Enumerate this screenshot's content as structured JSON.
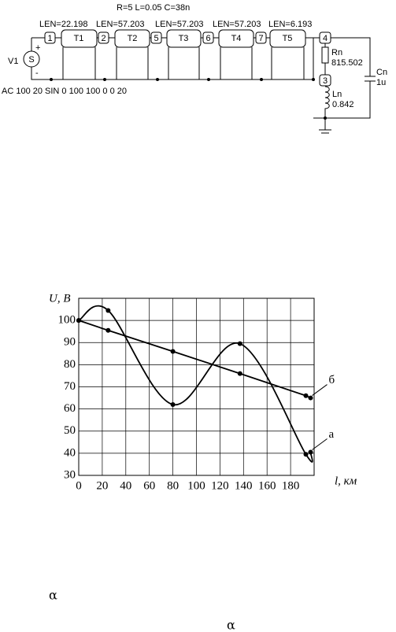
{
  "circuit": {
    "params": "R=5 L=0.05 C=38n",
    "lengths": [
      "LEN=22.198",
      "LEN=57.203",
      "LEN=57.203",
      "LEN=57.203",
      "LEN=6.193"
    ],
    "nodes": [
      "1",
      "2",
      "5",
      "6",
      "7",
      "4",
      "3"
    ],
    "lines": [
      "T1",
      "T2",
      "T3",
      "T4",
      "T5"
    ],
    "source": {
      "name": "V1",
      "symbol": "S",
      "plus": "+",
      "minus": "-",
      "spec": "AC 100 20 SIN 0 100 100 0 0 20"
    },
    "resistor": {
      "name": "Rn",
      "value": "815.502"
    },
    "inductor": {
      "name": "Ln",
      "value": "0.842"
    },
    "capacitor": {
      "name": "Cn",
      "value": "1u"
    }
  },
  "chart_data": {
    "type": "line",
    "x_label": "l, км",
    "y_label": "U, B",
    "x": [
      0,
      25,
      80,
      137,
      193,
      197
    ],
    "series": [
      {
        "name": "б",
        "color": "#000000",
        "values": [
          100,
          95.5,
          86,
          76,
          66,
          65
        ],
        "smooth": false
      },
      {
        "name": "а",
        "color": "#000000",
        "values": [
          100,
          104.5,
          62,
          89.5,
          39.5,
          40.5
        ],
        "smooth": true
      }
    ],
    "xlim": [
      0,
      200
    ],
    "xticks": [
      0,
      20,
      40,
      60,
      80,
      100,
      120,
      140,
      160,
      180
    ],
    "ylim": [
      30,
      110
    ],
    "yticks": [
      30,
      40,
      50,
      60,
      70,
      80,
      90,
      100
    ],
    "grid": true
  },
  "annotations": [
    "α",
    "α"
  ]
}
